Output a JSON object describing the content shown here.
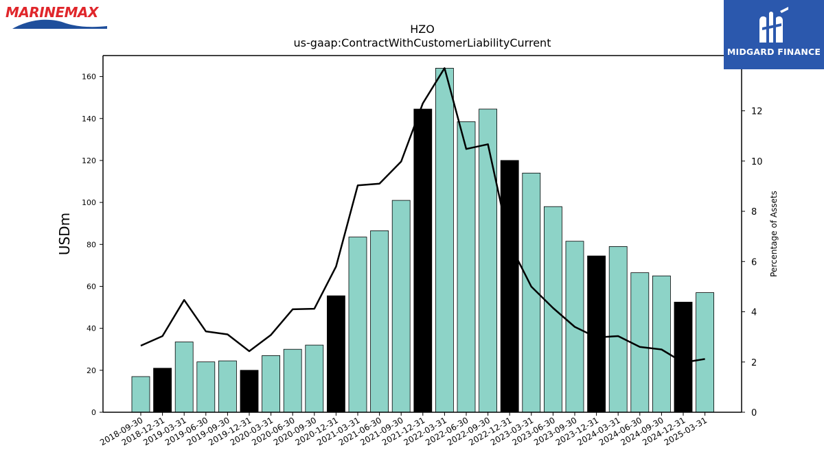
{
  "branding": {
    "left_logo_text": "MARINEMAX",
    "right_logo_text": "MIDGARD FINANCE",
    "right_logo_color": "#2b58ad"
  },
  "chart_data": {
    "type": "bar",
    "title": "HZO",
    "subtitle": "us-gaap:ContractWithCustomerLiabilityCurrent",
    "ylabel": "USDm",
    "y2label": "Percentage of Assets",
    "ylim": [
      0,
      170
    ],
    "y2lim": [
      0,
      14.2
    ],
    "yticks": [
      0,
      20,
      40,
      60,
      80,
      100,
      120,
      140,
      160
    ],
    "y2ticks": [
      0,
      2,
      4,
      6,
      8,
      10,
      12
    ],
    "grid": false,
    "categories": [
      "2018-09-30",
      "2018-12-31",
      "2019-03-31",
      "2019-06-30",
      "2019-09-30",
      "2019-12-31",
      "2020-03-31",
      "2020-06-30",
      "2020-09-30",
      "2020-12-31",
      "2021-03-31",
      "2021-06-30",
      "2021-09-30",
      "2021-12-31",
      "2022-03-31",
      "2022-06-30",
      "2022-09-30",
      "2022-12-31",
      "2023-03-31",
      "2023-06-30",
      "2023-09-30",
      "2023-12-31",
      "2024-03-31",
      "2024-06-30",
      "2024-09-30",
      "2024-12-31",
      "2025-03-31"
    ],
    "series": [
      {
        "type": "bar",
        "values": [
          17,
          21,
          33.5,
          24,
          24.5,
          20,
          27,
          30,
          32,
          55.5,
          83.5,
          86.5,
          101,
          144.5,
          164,
          138.5,
          144.5,
          120,
          114,
          98,
          81.5,
          74.5,
          79,
          66.5,
          65,
          52.5,
          57
        ],
        "colors": [
          "#8dd3c7",
          "#000000",
          "#8dd3c7",
          "#8dd3c7",
          "#8dd3c7",
          "#000000",
          "#8dd3c7",
          "#8dd3c7",
          "#8dd3c7",
          "#000000",
          "#8dd3c7",
          "#8dd3c7",
          "#8dd3c7",
          "#000000",
          "#8dd3c7",
          "#8dd3c7",
          "#8dd3c7",
          "#000000",
          "#8dd3c7",
          "#8dd3c7",
          "#8dd3c7",
          "#000000",
          "#8dd3c7",
          "#8dd3c7",
          "#8dd3c7",
          "#000000",
          "#8dd3c7"
        ]
      },
      {
        "type": "line",
        "axis": "right",
        "color": "#000000",
        "values": [
          2.65,
          3.03,
          4.47,
          3.22,
          3.1,
          2.43,
          3.08,
          4.1,
          4.12,
          5.8,
          9.03,
          9.1,
          9.98,
          12.3,
          13.7,
          10.48,
          10.67,
          6.7,
          5.0,
          4.15,
          3.4,
          2.98,
          3.03,
          2.6,
          2.5,
          1.98,
          2.12
        ]
      }
    ]
  }
}
